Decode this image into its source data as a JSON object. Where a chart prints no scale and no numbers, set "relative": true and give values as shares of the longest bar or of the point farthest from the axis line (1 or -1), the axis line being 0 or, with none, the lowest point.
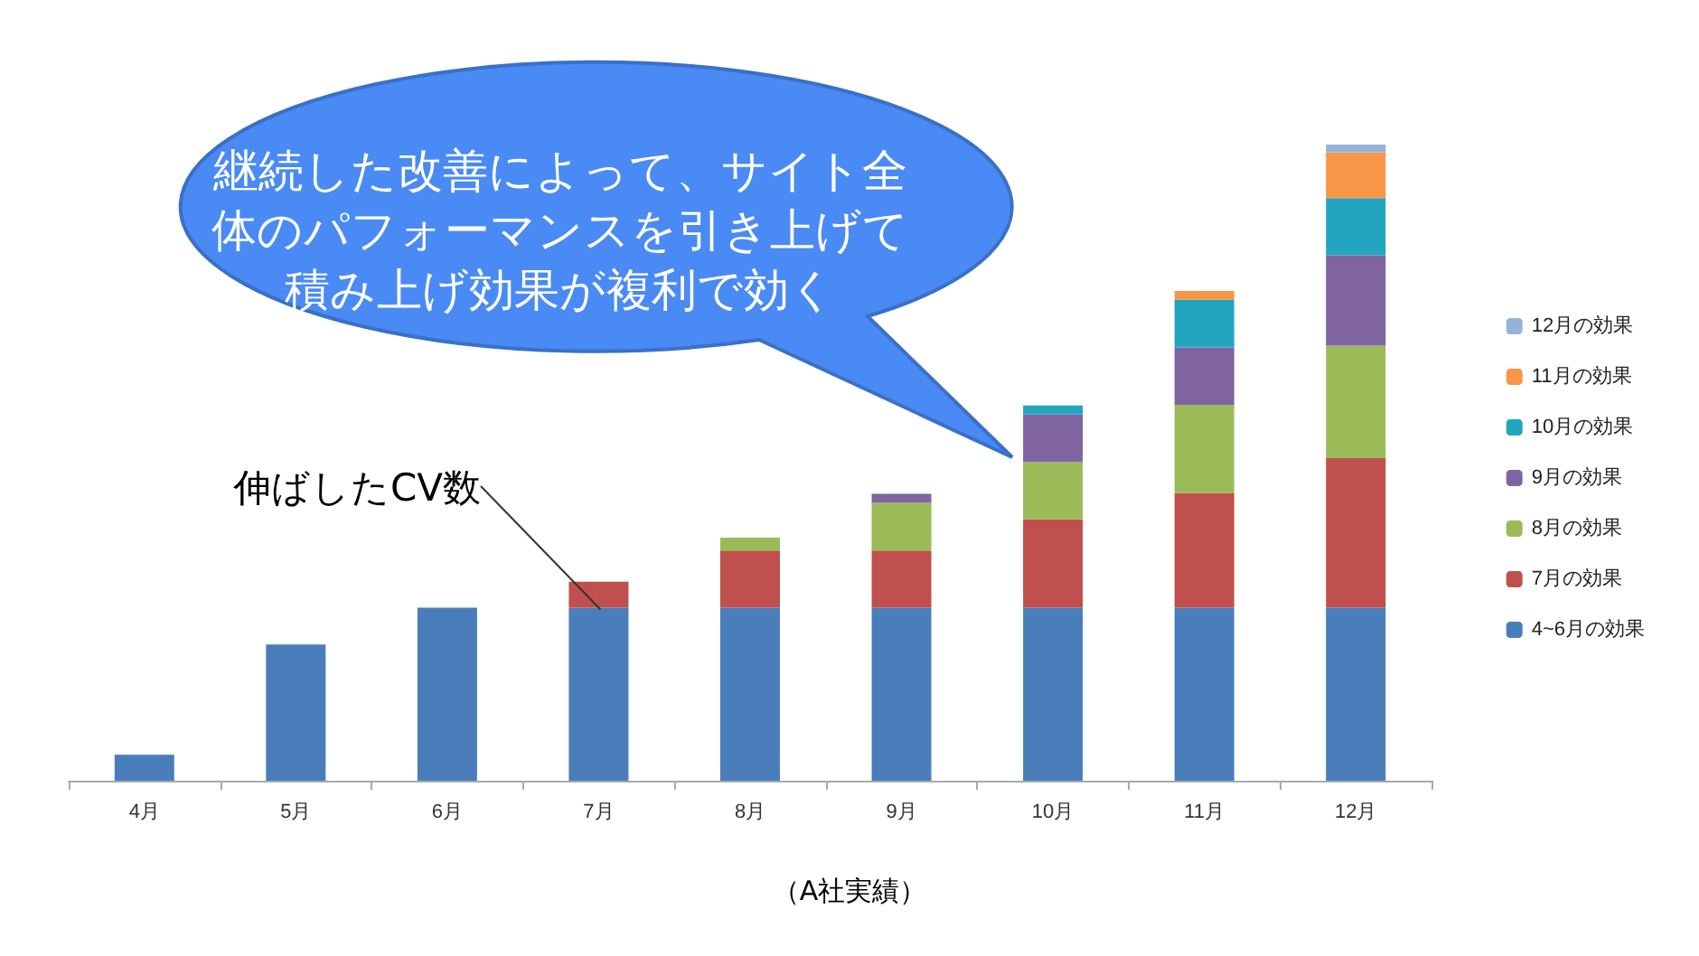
{
  "chart_data": {
    "type": "bar",
    "stacked": true,
    "relative": true,
    "categories": [
      "4月",
      "5月",
      "6月",
      "7月",
      "8月",
      "9月",
      "10月",
      "11月",
      "12月"
    ],
    "series": [
      {
        "name": "4~6月の効果",
        "color": "#4a7ebb",
        "values": [
          0.041,
          0.214,
          0.272,
          0.272,
          0.272,
          0.272,
          0.272,
          0.272,
          0.272
        ]
      },
      {
        "name": "7月の効果",
        "color": "#c0504d",
        "values": [
          null,
          null,
          null,
          0.041,
          0.09,
          0.09,
          0.139,
          0.18,
          0.235
        ]
      },
      {
        "name": "8月の効果",
        "color": "#9bbb59",
        "values": [
          null,
          null,
          null,
          null,
          0.02,
          0.075,
          0.09,
          0.139,
          0.177
        ]
      },
      {
        "name": "9月の効果",
        "color": "#8064a2",
        "values": [
          null,
          null,
          null,
          null,
          null,
          0.014,
          0.075,
          0.09,
          0.142
        ]
      },
      {
        "name": "10月の効果",
        "color": "#23a5c0",
        "values": [
          null,
          null,
          null,
          null,
          null,
          null,
          0.014,
          0.075,
          0.09
        ]
      },
      {
        "name": "11月の効果",
        "color": "#f79646",
        "values": [
          null,
          null,
          null,
          null,
          null,
          null,
          null,
          0.014,
          0.072
        ]
      },
      {
        "name": "12月の効果",
        "color": "#95b3d7",
        "values": [
          null,
          null,
          null,
          null,
          null,
          null,
          null,
          null,
          0.012
        ]
      }
    ],
    "legend": "right",
    "annotations": [
      "継続した改善によって、サイト全体のパフォーマンスを引き上げて積み上げ効果が複利で効く",
      {
        "text": "伸ばしたCV数",
        "x": "7月",
        "y": 0.272
      },
      "（A社実績）"
    ]
  }
}
